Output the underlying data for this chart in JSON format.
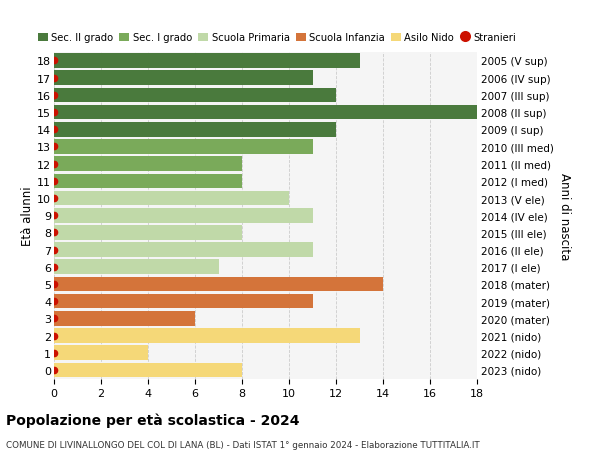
{
  "ages": [
    18,
    17,
    16,
    15,
    14,
    13,
    12,
    11,
    10,
    9,
    8,
    7,
    6,
    5,
    4,
    3,
    2,
    1,
    0
  ],
  "years": [
    "2005 (V sup)",
    "2006 (IV sup)",
    "2007 (III sup)",
    "2008 (II sup)",
    "2009 (I sup)",
    "2010 (III med)",
    "2011 (II med)",
    "2012 (I med)",
    "2013 (V ele)",
    "2014 (IV ele)",
    "2015 (III ele)",
    "2016 (II ele)",
    "2017 (I ele)",
    "2018 (mater)",
    "2019 (mater)",
    "2020 (mater)",
    "2021 (nido)",
    "2022 (nido)",
    "2023 (nido)"
  ],
  "values": [
    13,
    11,
    12,
    18,
    12,
    11,
    8,
    8,
    10,
    11,
    8,
    11,
    7,
    14,
    11,
    6,
    13,
    4,
    8
  ],
  "bar_colors": [
    "#4a7a3d",
    "#4a7a3d",
    "#4a7a3d",
    "#4a7a3d",
    "#4a7a3d",
    "#7aaa5a",
    "#7aaa5a",
    "#7aaa5a",
    "#c0d9a8",
    "#c0d9a8",
    "#c0d9a8",
    "#c0d9a8",
    "#c0d9a8",
    "#d4743a",
    "#d4743a",
    "#d4743a",
    "#f5d878",
    "#f5d878",
    "#f5d878"
  ],
  "dot_color": "#cc1100",
  "legend_labels": [
    "Sec. II grado",
    "Sec. I grado",
    "Scuola Primaria",
    "Scuola Infanzia",
    "Asilo Nido",
    "Stranieri"
  ],
  "legend_colors": [
    "#4a7a3d",
    "#7aaa5a",
    "#c0d9a8",
    "#d4743a",
    "#f5d878",
    "#cc1100"
  ],
  "legend_markers": [
    "s",
    "s",
    "s",
    "s",
    "s",
    "o"
  ],
  "ylabel_left": "Età alunni",
  "ylabel_right": "Anni di nascita",
  "title": "Popolazione per età scolastica - 2024",
  "subtitle": "COMUNE DI LIVINALLONGO DEL COL DI LANA (BL) - Dati ISTAT 1° gennaio 2024 - Elaborazione TUTTITALIA.IT",
  "xlim": [
    0,
    18
  ],
  "ylim": [
    -0.5,
    18.5
  ],
  "xticks": [
    0,
    2,
    4,
    6,
    8,
    10,
    12,
    14,
    16,
    18
  ],
  "grid_color": "#cccccc",
  "bg_color": "#f5f5f5",
  "bar_height": 0.85
}
